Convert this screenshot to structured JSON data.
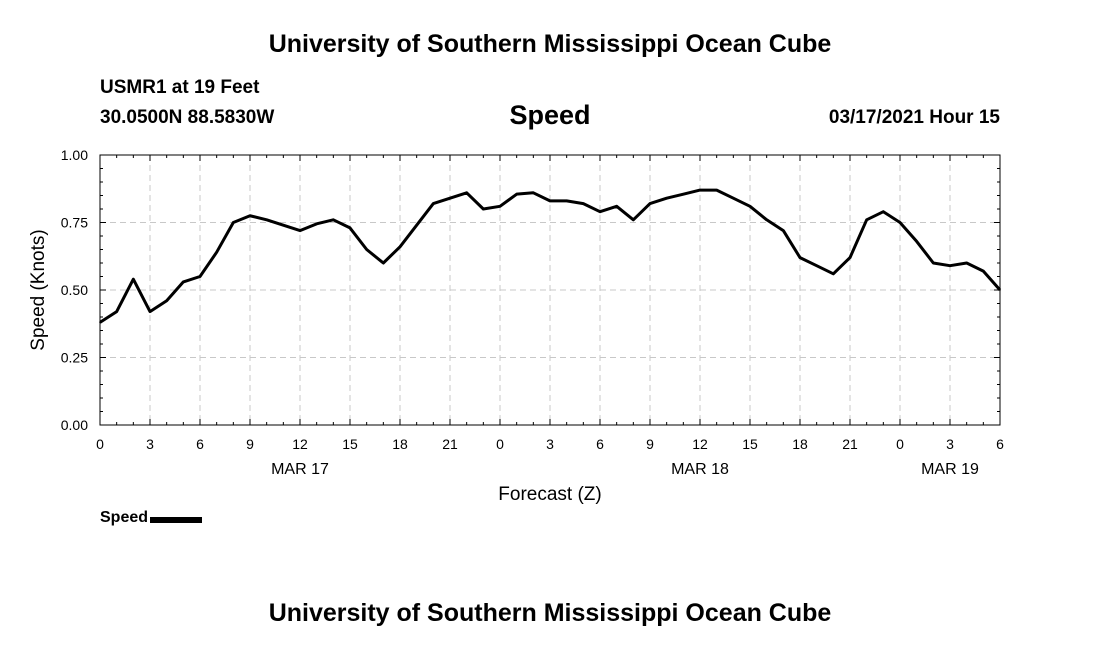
{
  "header": {
    "title": "University of Southern Mississippi Ocean Cube",
    "station": "USMR1 at 19 Feet",
    "coordinates": "30.0500N 88.5830W",
    "chart_title": "Speed",
    "datetime": "03/17/2021 Hour 15"
  },
  "footer": {
    "title": "University of Southern Mississippi Ocean Cube"
  },
  "legend": {
    "label": "Speed"
  },
  "chart_data": {
    "type": "line",
    "title": "Speed",
    "xlabel": "Forecast (Z)",
    "ylabel": "Speed (Knots)",
    "ylim": [
      0,
      1
    ],
    "y_ticks": [
      "0.00",
      "0.25",
      "0.50",
      "0.75",
      "1.00"
    ],
    "x_ticks": [
      "0",
      "3",
      "6",
      "9",
      "12",
      "15",
      "18",
      "21",
      "0",
      "3",
      "6",
      "9",
      "12",
      "15",
      "18",
      "21",
      "0",
      "3",
      "6"
    ],
    "date_labels": [
      {
        "label": "MAR 17",
        "at_tick": 4
      },
      {
        "label": "MAR 18",
        "at_tick": 12
      },
      {
        "label": "MAR 19",
        "at_tick": 17
      }
    ],
    "grid": true,
    "legend_position": "bottom-left",
    "series": [
      {
        "name": "Speed",
        "color": "#000000",
        "x_hours": [
          0,
          1,
          2,
          3,
          4,
          5,
          6,
          7,
          8,
          9,
          10,
          11,
          12,
          13,
          14,
          15,
          16,
          17,
          18,
          19,
          20,
          21,
          22,
          23,
          24,
          25,
          26,
          27,
          28,
          29,
          30,
          31,
          32,
          33,
          34,
          35,
          36,
          37,
          38,
          39,
          40,
          41,
          42,
          43,
          44,
          45,
          46,
          47,
          48,
          49,
          50,
          51,
          52,
          53,
          54
        ],
        "values": [
          0.38,
          0.42,
          0.54,
          0.42,
          0.46,
          0.53,
          0.55,
          0.64,
          0.75,
          0.775,
          0.76,
          0.74,
          0.72,
          0.745,
          0.76,
          0.73,
          0.65,
          0.6,
          0.66,
          0.74,
          0.82,
          0.84,
          0.86,
          0.8,
          0.81,
          0.855,
          0.86,
          0.83,
          0.83,
          0.82,
          0.79,
          0.81,
          0.76,
          0.82,
          0.84,
          0.855,
          0.87,
          0.87,
          0.84,
          0.81,
          0.76,
          0.72,
          0.62,
          0.59,
          0.56,
          0.62,
          0.76,
          0.79,
          0.75,
          0.68,
          0.6,
          0.59,
          0.6,
          0.57,
          0.5
        ]
      }
    ]
  }
}
